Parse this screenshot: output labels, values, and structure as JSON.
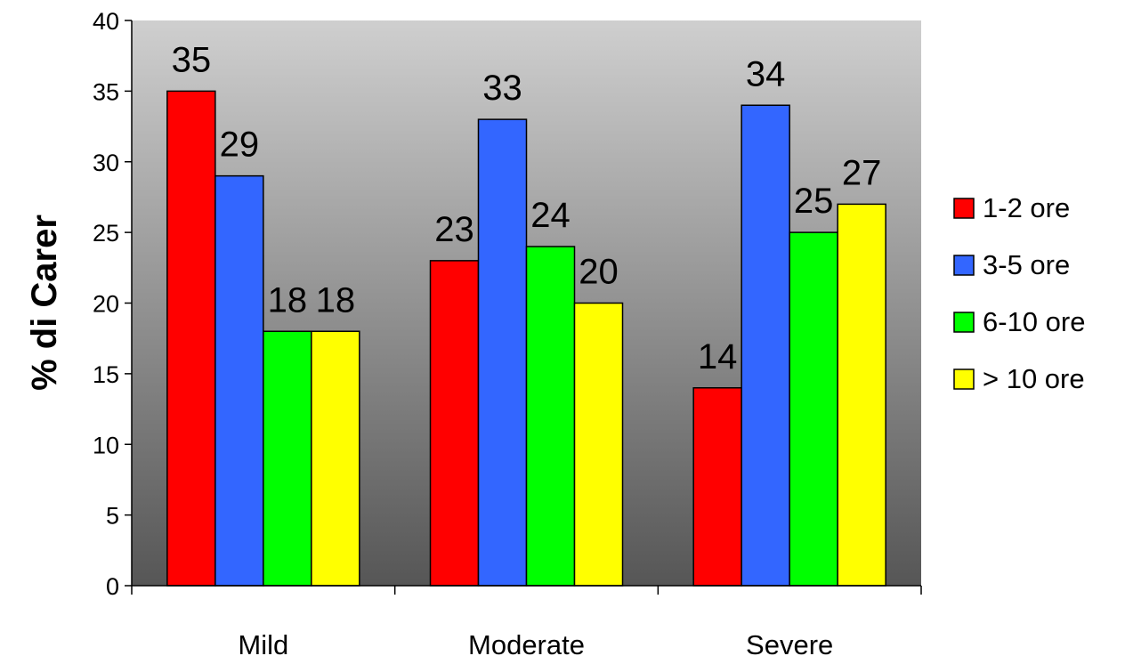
{
  "chart_data": {
    "type": "bar",
    "title": "",
    "xlabel": "",
    "ylabel": "% di Carer",
    "ylim": [
      0,
      40
    ],
    "yticks": [
      0,
      5,
      10,
      15,
      20,
      25,
      30,
      35,
      40
    ],
    "categories": [
      "Mild",
      "Moderate",
      "Severe"
    ],
    "series": [
      {
        "name": "1-2 ore",
        "color": "#ff0000",
        "values": [
          35,
          23,
          14
        ]
      },
      {
        "name": "3-5 ore",
        "color": "#3366ff",
        "values": [
          29,
          33,
          34
        ]
      },
      {
        "name": "6-10 ore",
        "color": "#00ff00",
        "values": [
          18,
          24,
          25
        ]
      },
      {
        "name": "> 10 ore",
        "color": "#ffff00",
        "values": [
          18,
          20,
          27
        ]
      }
    ],
    "data_labels": true,
    "legend_position": "right",
    "plot_background": "gradient light-gray to dark-gray",
    "grid": false
  }
}
